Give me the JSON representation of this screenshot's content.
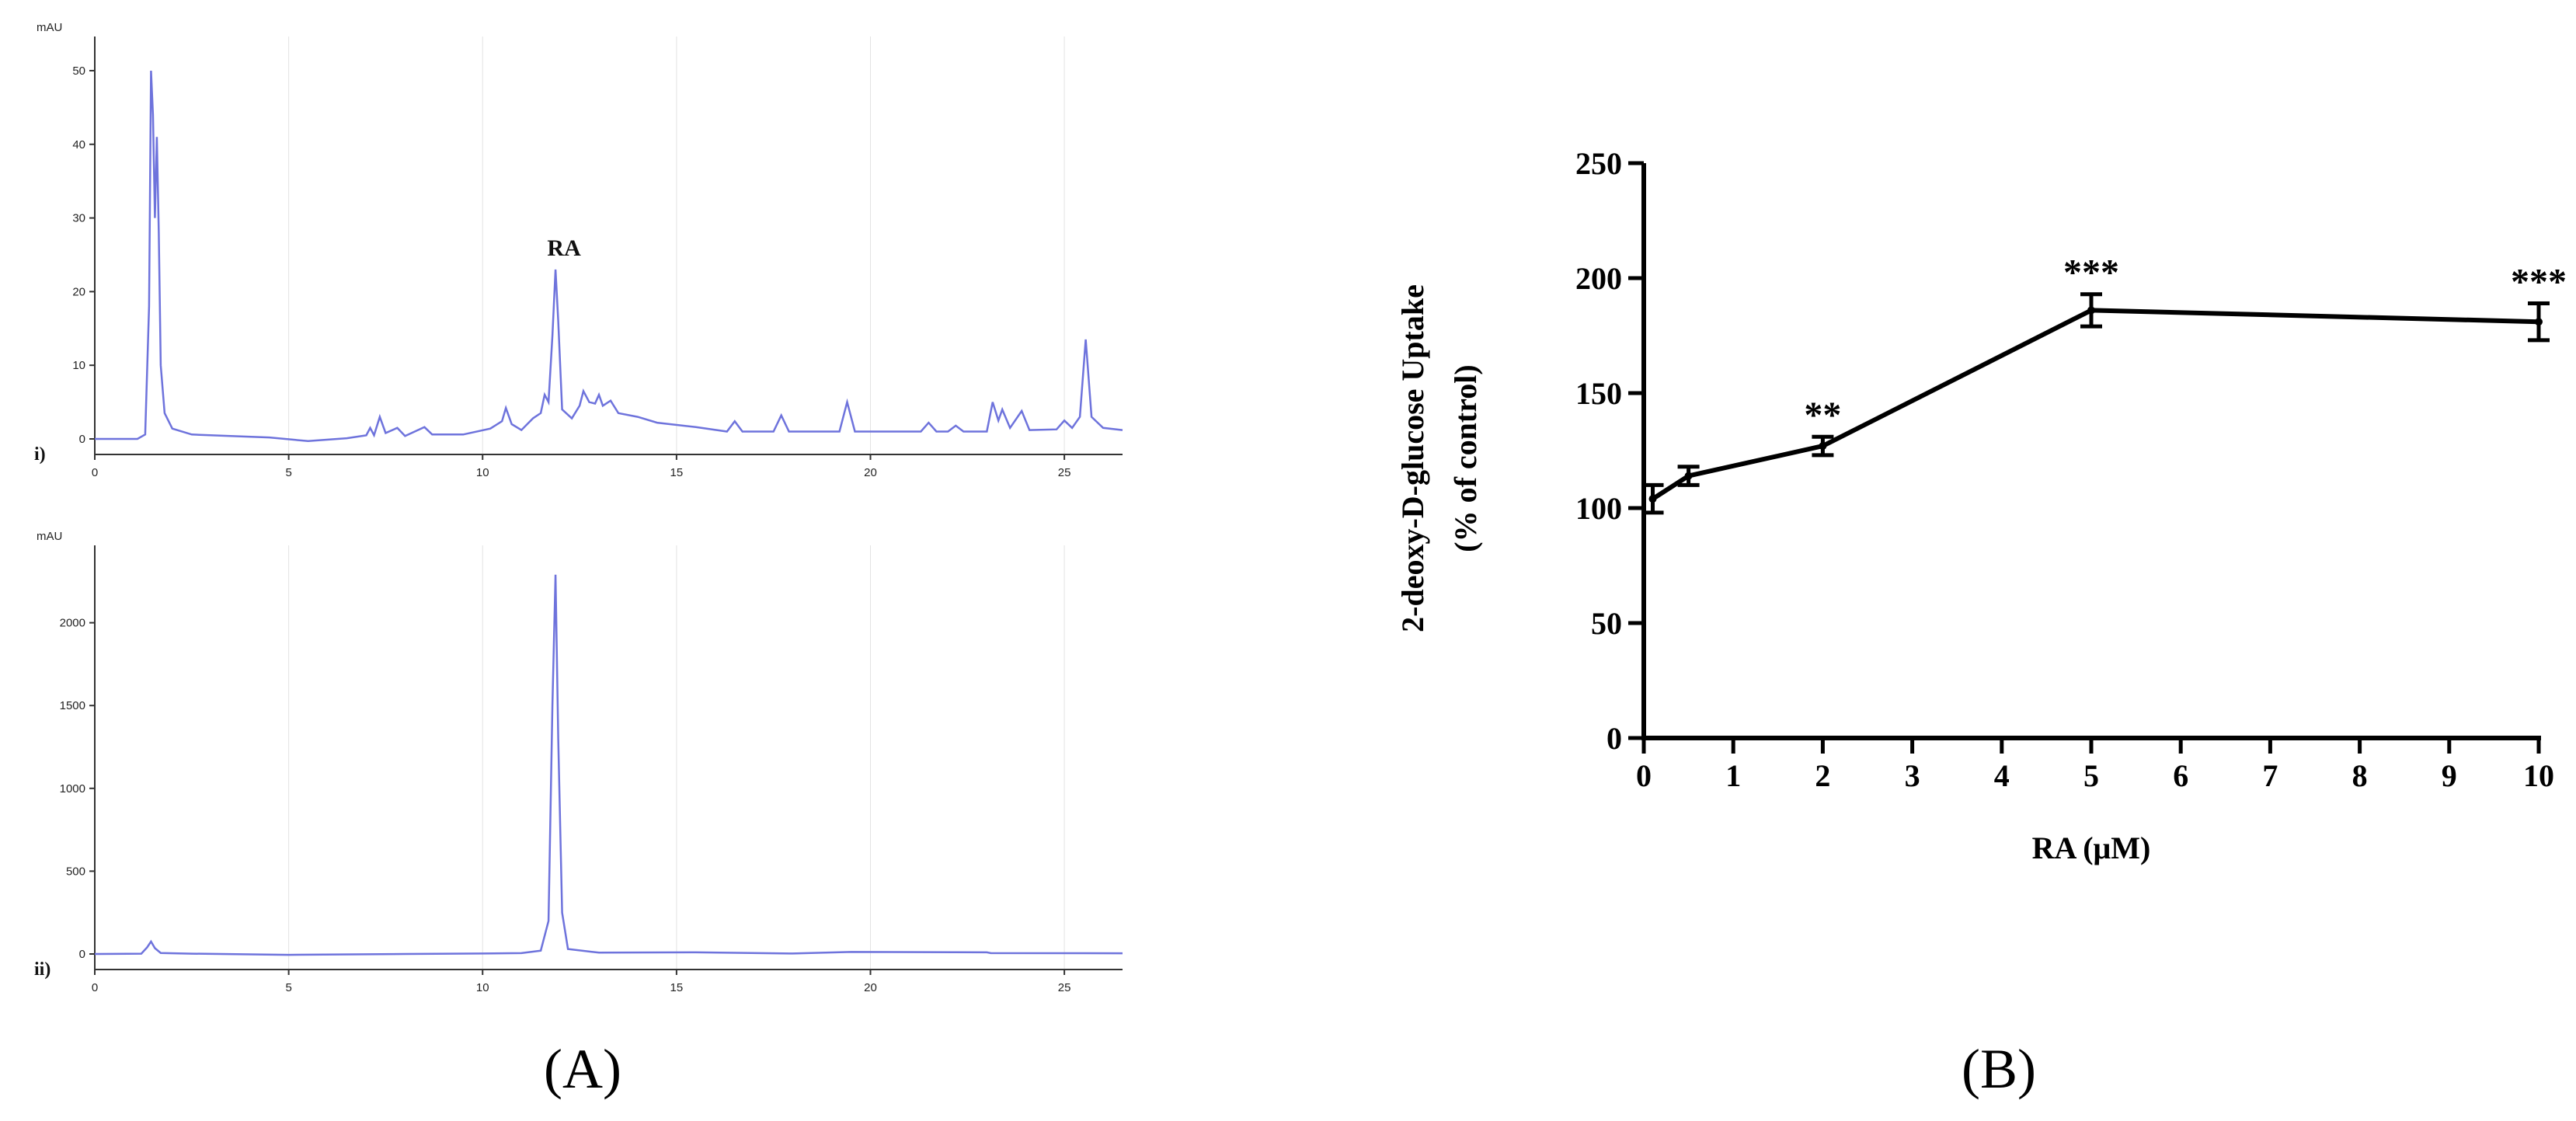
{
  "panels": {
    "a_label": "(A)",
    "b_label": "(B)"
  },
  "chart_data": [
    {
      "id": "chromatogram_i",
      "type": "line",
      "panel_label": "i)",
      "y_unit": "mAU",
      "xlim": [
        0,
        26.5
      ],
      "ylim": [
        0,
        52
      ],
      "x_ticks": [
        "0",
        "5",
        "10",
        "15",
        "20",
        "25"
      ],
      "y_ticks": [
        "0",
        "10",
        "20",
        "30",
        "40",
        "50"
      ],
      "x_tick_values": [
        0,
        5,
        10,
        15,
        20,
        25
      ],
      "y_tick_values": [
        0,
        10,
        20,
        30,
        40,
        50
      ],
      "annotations": [
        {
          "text": "RA",
          "x": 11.9,
          "y": 23
        }
      ],
      "line_color": "#6e73dc",
      "series": [
        {
          "points": [
            [
              0,
              0
            ],
            [
              1.1,
              0
            ],
            [
              1.3,
              0.6
            ],
            [
              1.4,
              18
            ],
            [
              1.45,
              50
            ],
            [
              1.5,
              44
            ],
            [
              1.55,
              30
            ],
            [
              1.6,
              41
            ],
            [
              1.65,
              28
            ],
            [
              1.7,
              10
            ],
            [
              1.8,
              3.5
            ],
            [
              2.0,
              1.4
            ],
            [
              2.5,
              0.6
            ],
            [
              3.5,
              0.4
            ],
            [
              4.5,
              0.2
            ],
            [
              5.5,
              -0.3
            ],
            [
              6.5,
              0.1
            ],
            [
              7.0,
              0.5
            ],
            [
              7.1,
              1.5
            ],
            [
              7.2,
              0.5
            ],
            [
              7.35,
              3
            ],
            [
              7.5,
              0.8
            ],
            [
              7.8,
              1.5
            ],
            [
              8.0,
              0.4
            ],
            [
              8.5,
              1.6
            ],
            [
              8.7,
              0.6
            ],
            [
              9.5,
              0.6
            ],
            [
              10.2,
              1.4
            ],
            [
              10.5,
              2.4
            ],
            [
              10.6,
              4.2
            ],
            [
              10.75,
              2
            ],
            [
              11.0,
              1.2
            ],
            [
              11.3,
              2.8
            ],
            [
              11.5,
              3.5
            ],
            [
              11.6,
              6
            ],
            [
              11.7,
              5
            ],
            [
              11.8,
              14
            ],
            [
              11.88,
              23
            ],
            [
              11.95,
              16
            ],
            [
              12.05,
              4
            ],
            [
              12.3,
              2.8
            ],
            [
              12.5,
              4.5
            ],
            [
              12.6,
              6.5
            ],
            [
              12.75,
              5
            ],
            [
              12.9,
              4.8
            ],
            [
              13.0,
              6
            ],
            [
              13.1,
              4.5
            ],
            [
              13.3,
              5.2
            ],
            [
              13.5,
              3.5
            ],
            [
              14.0,
              3
            ],
            [
              14.5,
              2.2
            ],
            [
              15.5,
              1.6
            ],
            [
              16.3,
              1
            ],
            [
              16.5,
              2.4
            ],
            [
              16.7,
              1
            ],
            [
              17.5,
              1
            ],
            [
              17.7,
              3.2
            ],
            [
              17.9,
              1
            ],
            [
              19.2,
              1
            ],
            [
              19.4,
              5
            ],
            [
              19.6,
              1
            ],
            [
              21.3,
              1
            ],
            [
              21.5,
              2.2
            ],
            [
              21.7,
              1
            ],
            [
              22.0,
              1
            ],
            [
              22.2,
              1.8
            ],
            [
              22.4,
              1
            ],
            [
              23.0,
              1
            ],
            [
              23.15,
              5
            ],
            [
              23.3,
              2.5
            ],
            [
              23.4,
              4
            ],
            [
              23.6,
              1.5
            ],
            [
              23.9,
              3.8
            ],
            [
              24.1,
              1.2
            ],
            [
              24.8,
              1.3
            ],
            [
              25.0,
              2.5
            ],
            [
              25.2,
              1.5
            ],
            [
              25.4,
              3
            ],
            [
              25.55,
              13.5
            ],
            [
              25.7,
              3
            ],
            [
              26.0,
              1.5
            ],
            [
              26.5,
              1.2
            ]
          ]
        }
      ]
    },
    {
      "id": "chromatogram_ii",
      "type": "line",
      "panel_label": "ii)",
      "y_unit": "mAU",
      "xlim": [
        0,
        26.5
      ],
      "ylim": [
        0,
        2350
      ],
      "x_ticks": [
        "0",
        "5",
        "10",
        "15",
        "20",
        "25"
      ],
      "y_ticks": [
        "0",
        "500",
        "1000",
        "1500",
        "2000"
      ],
      "x_tick_values": [
        0,
        5,
        10,
        15,
        20,
        25
      ],
      "y_tick_values": [
        0,
        500,
        1000,
        1500,
        2000
      ],
      "line_color": "#6e73dc",
      "series": [
        {
          "points": [
            [
              0,
              0
            ],
            [
              1.2,
              2
            ],
            [
              1.35,
              40
            ],
            [
              1.45,
              75
            ],
            [
              1.55,
              35
            ],
            [
              1.7,
              6
            ],
            [
              2.5,
              2
            ],
            [
              5,
              -5
            ],
            [
              8,
              0
            ],
            [
              10,
              3
            ],
            [
              11.0,
              5
            ],
            [
              11.5,
              20
            ],
            [
              11.7,
              200
            ],
            [
              11.8,
              1500
            ],
            [
              11.88,
              2290
            ],
            [
              11.95,
              1300
            ],
            [
              12.05,
              250
            ],
            [
              12.2,
              30
            ],
            [
              13,
              8
            ],
            [
              15.5,
              10
            ],
            [
              18,
              3
            ],
            [
              19.5,
              12
            ],
            [
              23,
              10
            ],
            [
              23.1,
              5
            ],
            [
              26.5,
              4
            ]
          ]
        }
      ]
    },
    {
      "id": "glucose_uptake",
      "type": "line",
      "xlabel": "RA (μM)",
      "ylabel_lines": [
        "2-deoxy-D-glucose Uptake",
        "(% of control)"
      ],
      "xlim": [
        0,
        10
      ],
      "ylim": [
        0,
        250
      ],
      "x_ticks": [
        "0",
        "1",
        "2",
        "3",
        "4",
        "5",
        "6",
        "7",
        "8",
        "9",
        "10"
      ],
      "y_ticks": [
        "0",
        "50",
        "100",
        "150",
        "200",
        "250"
      ],
      "x_tick_values": [
        0,
        1,
        2,
        3,
        4,
        5,
        6,
        7,
        8,
        9,
        10
      ],
      "y_tick_values": [
        0,
        50,
        100,
        150,
        200,
        250
      ],
      "series": [
        {
          "x": [
            0.1,
            0.5,
            2,
            5,
            10
          ],
          "y": [
            104,
            114,
            127,
            186,
            181
          ],
          "err": [
            6,
            4,
            4,
            7,
            8
          ],
          "significance": [
            "",
            "",
            "**",
            "***",
            "***"
          ]
        }
      ]
    }
  ]
}
